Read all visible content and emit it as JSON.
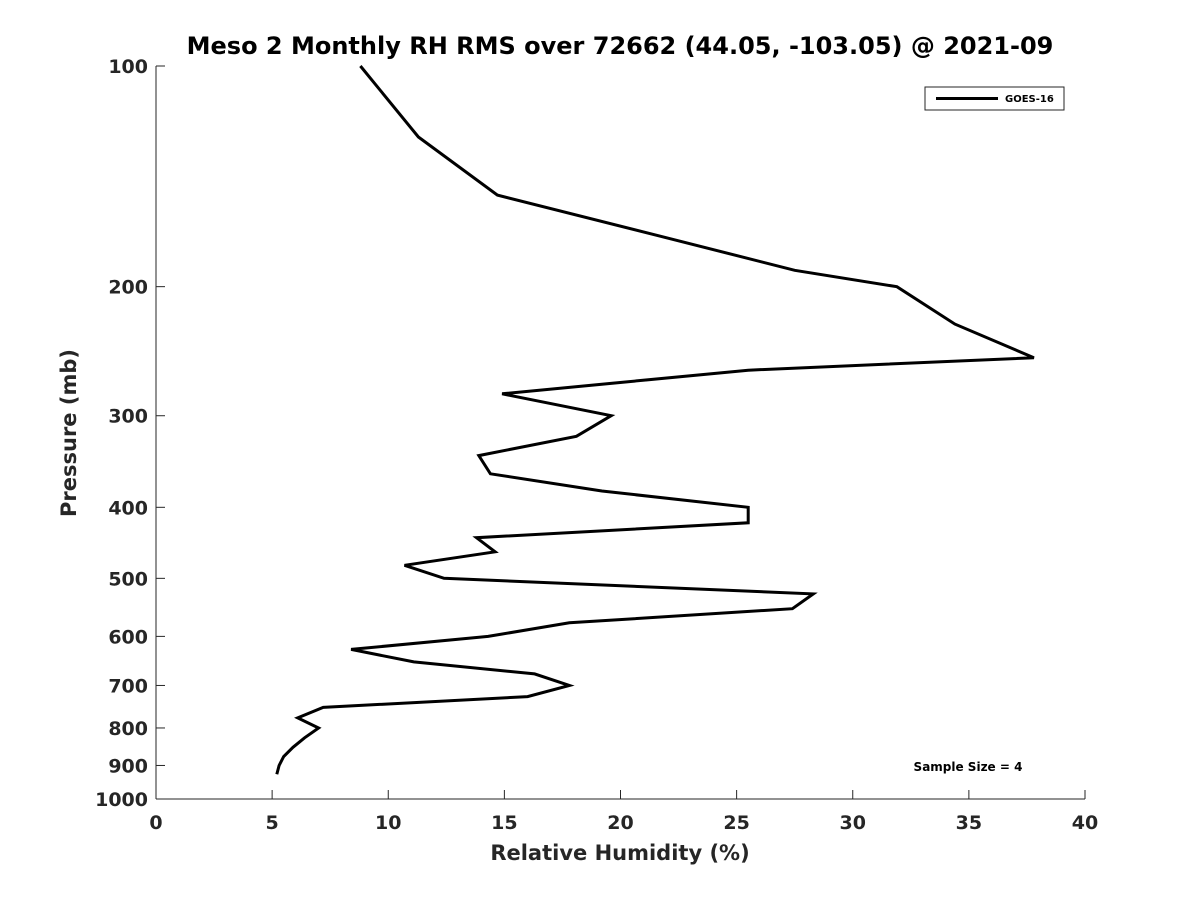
{
  "chart_data": {
    "type": "line",
    "title": "Meso 2 Monthly RH RMS over 72662 (44.05, -103.05) @ 2021-09",
    "xlabel": "Relative Humidity (%)",
    "ylabel": "Pressure (mb)",
    "xlim": [
      0,
      40
    ],
    "ylim": [
      1000,
      100
    ],
    "y_scale": "log",
    "y_reversed": true,
    "x_ticks": [
      0,
      5,
      10,
      15,
      20,
      25,
      30,
      35,
      40
    ],
    "y_ticks": [
      100,
      200,
      300,
      400,
      500,
      600,
      700,
      800,
      900,
      1000
    ],
    "grid": false,
    "legend_position": "top-right",
    "series": [
      {
        "name": "GOES-16",
        "color": "#000000",
        "x": [
          8.8,
          11.3,
          14.7,
          21.5,
          27.5,
          31.9,
          34.4,
          37.8,
          25.5,
          14.9,
          19.6,
          18.1,
          13.9,
          14.4,
          19.2,
          25.5,
          25.5,
          13.8,
          14.6,
          10.7,
          12.4,
          28.3,
          27.4,
          17.8,
          14.3,
          8.4,
          11.1,
          16.3,
          17.8,
          16.0,
          7.2,
          6.1,
          7.0,
          6.4,
          5.9,
          5.5,
          5.3,
          5.2
        ],
        "y": [
          100,
          125,
          150,
          170,
          190,
          200,
          225,
          250,
          260,
          280,
          300,
          320,
          340,
          360,
          380,
          400,
          420,
          440,
          460,
          480,
          500,
          525,
          550,
          575,
          600,
          625,
          650,
          675,
          700,
          725,
          750,
          775,
          800,
          825,
          850,
          875,
          900,
          925
        ]
      }
    ],
    "annotations": [
      "Sample Size = 4"
    ]
  }
}
